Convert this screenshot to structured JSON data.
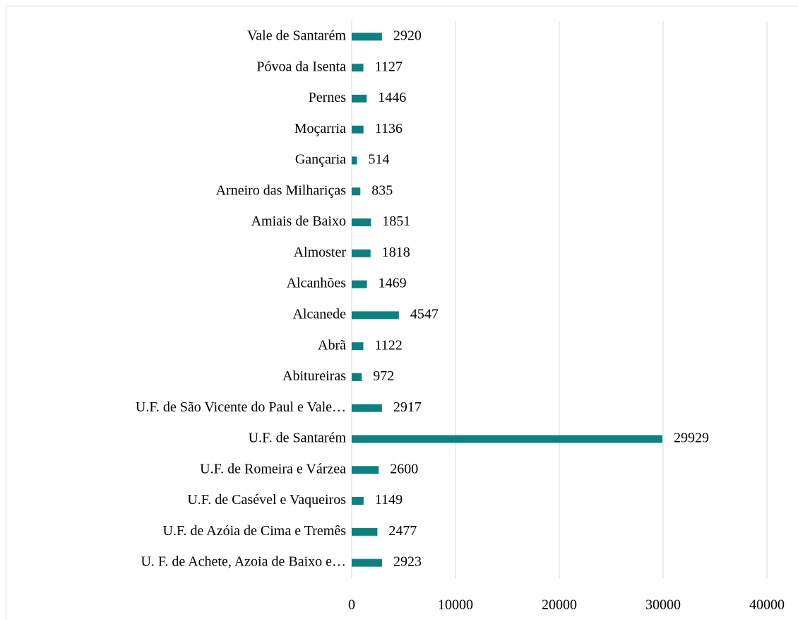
{
  "chart_data": {
    "type": "bar",
    "orientation": "horizontal",
    "categories": [
      "Vale de Santarém",
      "Póvoa da Isenta",
      "Pernes",
      "Moçarria",
      "Gançaria",
      "Arneiro das Milhariças",
      "Amiais de Baixo",
      "Almoster",
      "Alcanhões",
      "Alcanede",
      "Abrã",
      "Abitureiras",
      "U.F. de São Vicente do Paul e Vale…",
      "U.F. de Santarém",
      "U.F. de Romeira e Várzea",
      "U.F. de Casével e Vaqueiros",
      "U.F. de Azóia de Cima e Tremês",
      "U. F. de Achete, Azoia de Baixo e…"
    ],
    "values": [
      2920,
      1127,
      1446,
      1136,
      514,
      835,
      1851,
      1818,
      1469,
      4547,
      1122,
      972,
      2917,
      29929,
      2600,
      1149,
      2477,
      2923
    ],
    "color": "#0e8080",
    "xlim": [
      0,
      40000
    ],
    "xticks": [
      0,
      10000,
      20000,
      30000,
      40000
    ],
    "grid": true
  }
}
